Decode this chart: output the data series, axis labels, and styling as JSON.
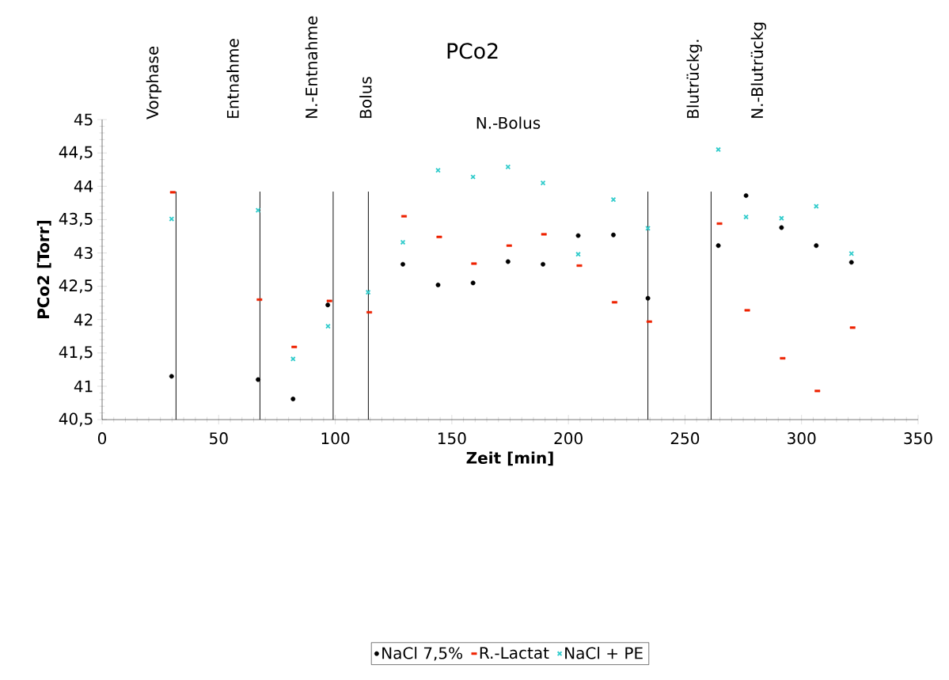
{
  "chart_data": {
    "type": "scatter",
    "title": "PCo2",
    "xlabel": "Zeit [min]",
    "ylabel": "PCo2 [Torr]",
    "xlim": [
      0,
      350
    ],
    "xticks": [
      0,
      50,
      100,
      150,
      200,
      250,
      300,
      350
    ],
    "ylim": [
      40.5,
      45
    ],
    "yticks": [
      {
        "value": 40.5,
        "label": "40,5"
      },
      41,
      {
        "value": 41.5,
        "label": "41,5"
      },
      42,
      {
        "value": 42.5,
        "label": "42,5"
      },
      43,
      {
        "value": 43.5,
        "label": "43,5"
      },
      44,
      {
        "value": 44.5,
        "label": "44,5"
      },
      45
    ],
    "grid": false,
    "legend": "bottom",
    "series": [
      {
        "name": "NaCl 7,5%",
        "color": "#000000",
        "marker": "circle",
        "x": [
          29.8,
          66.9,
          81.9,
          96.8,
          129.0,
          144.1,
          159.1,
          174.1,
          189.1,
          204.2,
          219.3,
          234.1,
          264.3,
          276.2,
          291.4,
          306.3,
          321.4
        ],
        "values": [
          41.15,
          41.1,
          40.81,
          42.22,
          42.83,
          42.52,
          42.55,
          42.87,
          42.83,
          43.26,
          43.27,
          42.32,
          43.11,
          43.86,
          43.38,
          43.11,
          42.86
        ]
      },
      {
        "name": "R.-Lactat",
        "color": "#ee2200",
        "marker": "square",
        "x": [
          30.3,
          67.5,
          82.4,
          97.5,
          114.6,
          129.5,
          144.6,
          159.5,
          174.6,
          189.5,
          204.7,
          219.8,
          234.7,
          264.8,
          276.7,
          291.9,
          306.8,
          321.9
        ],
        "values": [
          43.91,
          42.3,
          41.59,
          42.28,
          42.11,
          43.55,
          43.24,
          42.84,
          43.11,
          43.28,
          42.81,
          42.26,
          41.97,
          43.44,
          42.14,
          41.42,
          40.93,
          41.88
        ]
      },
      {
        "name": "NaCl + PE",
        "color": "#33cccc",
        "marker": "cross",
        "x": [
          29.8,
          66.9,
          81.9,
          96.9,
          114.1,
          129.0,
          144.1,
          159.1,
          174.1,
          189.1,
          204.2,
          219.3,
          234.1,
          264.3,
          276.2,
          291.4,
          306.3,
          321.4
        ],
        "values": [
          43.51,
          43.64,
          41.41,
          41.9,
          42.41,
          43.16,
          44.24,
          44.14,
          44.29,
          44.05,
          42.98,
          43.8,
          43.37,
          44.55,
          43.54,
          43.52,
          43.7,
          42.99
        ]
      }
    ],
    "ref_lines": [
      {
        "axis": "x",
        "value": 31.7
      },
      {
        "axis": "x",
        "value": 67.7
      },
      {
        "axis": "x",
        "value": 99.1
      },
      {
        "axis": "x",
        "value": 114.2
      },
      {
        "axis": "x",
        "value": 234.1
      },
      {
        "axis": "x",
        "value": 261.2
      }
    ],
    "annotations": [
      "Vorphase",
      "Entnahme",
      "N.-Entnahme",
      "Bolus",
      "N.-Bolus",
      "Blutrückg.",
      "N.-Blutrückg"
    ]
  }
}
